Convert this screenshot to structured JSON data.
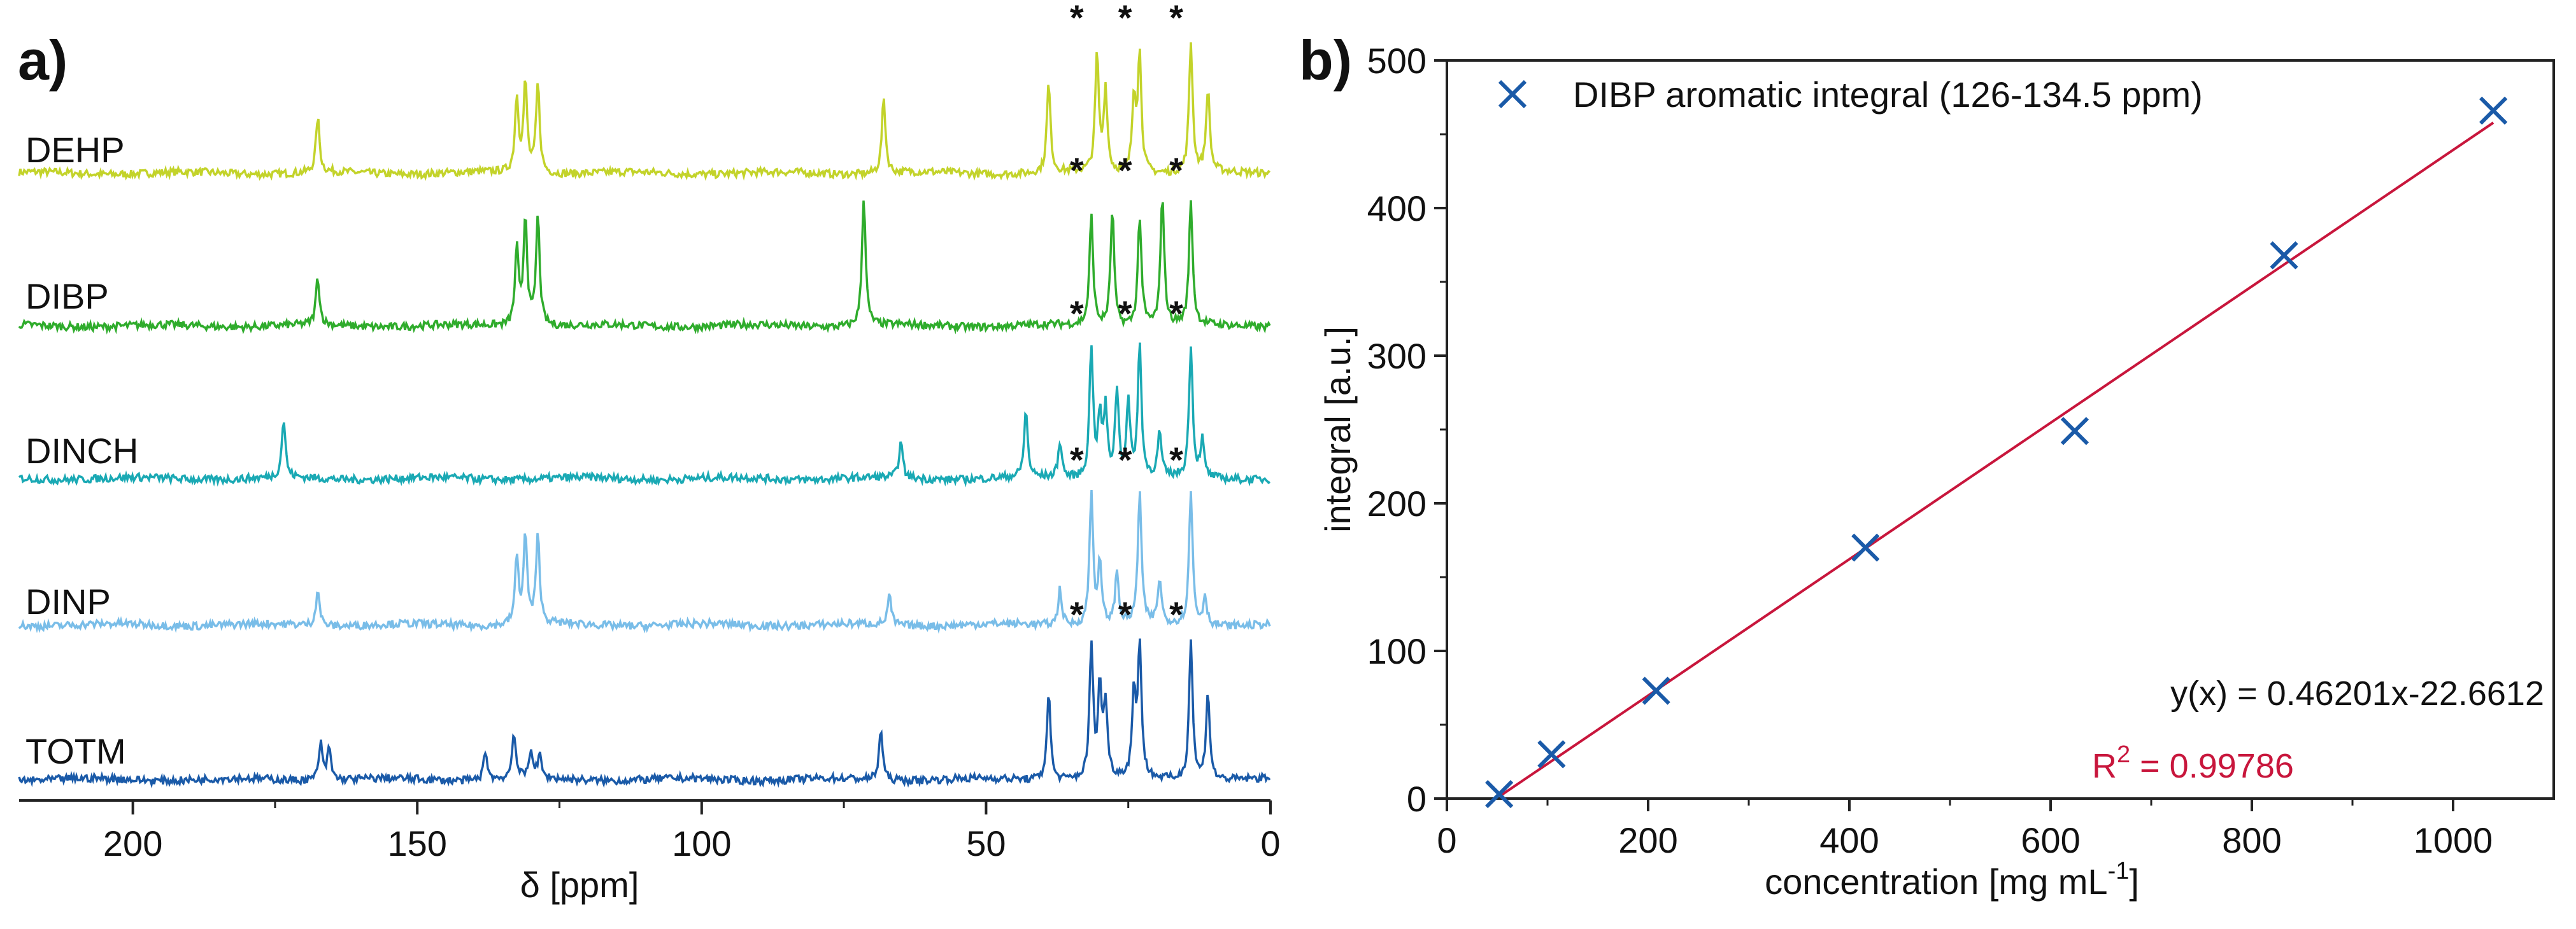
{
  "figure_title": "",
  "chart_data": [
    {
      "type": "line",
      "panel_label": "a)",
      "title": "",
      "xlabel": "δ [ppm]",
      "ylabel": "",
      "xlim": [
        220,
        0
      ],
      "x_reversed": true,
      "xticks": [
        200,
        150,
        100,
        50,
        0
      ],
      "grid": false,
      "peak_marker": "*",
      "marker_ppm": [
        31.5,
        23.0,
        14.0
      ],
      "series": [
        {
          "name": "DEHP",
          "color": "#c3d32a",
          "peaks": [
            [
              167.5,
              0.4
            ],
            [
              132.5,
              0.55
            ],
            [
              131.0,
              0.65
            ],
            [
              128.8,
              0.65
            ],
            [
              68.0,
              0.55
            ],
            [
              39.0,
              0.65
            ],
            [
              30.5,
              0.85
            ],
            [
              29.0,
              0.6
            ],
            [
              24.0,
              0.55
            ],
            [
              23.0,
              0.85
            ],
            [
              14.0,
              0.95
            ],
            [
              11.0,
              0.6
            ]
          ]
        },
        {
          "name": "DIBP",
          "color": "#2fac2c",
          "peaks": [
            [
              167.5,
              0.35
            ],
            [
              132.5,
              0.55
            ],
            [
              131.0,
              0.8
            ],
            [
              128.8,
              0.8
            ],
            [
              71.5,
              0.95
            ],
            [
              31.5,
              0.8
            ],
            [
              27.8,
              0.85
            ],
            [
              23.0,
              0.8
            ],
            [
              19.0,
              0.95
            ],
            [
              14.0,
              0.9
            ]
          ]
        },
        {
          "name": "DINCH",
          "color": "#1aa9b4",
          "peaks": [
            [
              173.5,
              0.4
            ],
            [
              65.0,
              0.25
            ],
            [
              43.0,
              0.45
            ],
            [
              37.0,
              0.25
            ],
            [
              31.5,
              0.9
            ],
            [
              30.0,
              0.4
            ],
            [
              29.0,
              0.45
            ],
            [
              27.0,
              0.6
            ],
            [
              25.0,
              0.5
            ],
            [
              23.0,
              0.9
            ],
            [
              19.5,
              0.3
            ],
            [
              14.0,
              0.9
            ],
            [
              12.0,
              0.25
            ]
          ]
        },
        {
          "name": "DINP",
          "color": "#79bde8",
          "peaks": [
            [
              167.5,
              0.25
            ],
            [
              132.5,
              0.45
            ],
            [
              131.0,
              0.6
            ],
            [
              128.8,
              0.6
            ],
            [
              67.0,
              0.2
            ],
            [
              37.0,
              0.25
            ],
            [
              31.5,
              0.9
            ],
            [
              30.0,
              0.4
            ],
            [
              27.0,
              0.35
            ],
            [
              23.0,
              0.9
            ],
            [
              19.5,
              0.3
            ],
            [
              14.0,
              0.9
            ],
            [
              11.5,
              0.2
            ]
          ]
        },
        {
          "name": "TOTM",
          "color": "#1a5aa8",
          "peaks": [
            [
              167.0,
              0.25
            ],
            [
              165.5,
              0.22
            ],
            [
              138.0,
              0.2
            ],
            [
              133.0,
              0.32
            ],
            [
              130.0,
              0.2
            ],
            [
              128.5,
              0.15
            ],
            [
              68.5,
              0.35
            ],
            [
              39.0,
              0.6
            ],
            [
              31.5,
              0.9
            ],
            [
              30.0,
              0.6
            ],
            [
              29.0,
              0.5
            ],
            [
              24.0,
              0.55
            ],
            [
              23.0,
              0.9
            ],
            [
              14.0,
              0.95
            ],
            [
              11.0,
              0.6
            ]
          ]
        }
      ]
    },
    {
      "type": "scatter",
      "panel_label": "b)",
      "title": "",
      "xlabel": "concentration [mg mL",
      "xlabel_superscript": "-1",
      "xlabel_suffix": "]",
      "ylabel": "integral [a.u.]",
      "xlim": [
        0,
        1100
      ],
      "ylim": [
        0,
        500
      ],
      "xticks": [
        0,
        200,
        400,
        600,
        800,
        1000
      ],
      "yticks": [
        0,
        100,
        200,
        300,
        400,
        500
      ],
      "grid": false,
      "legend_position": "top-left",
      "series": [
        {
          "name": "DIBP aromatic integral (126-134.5 ppm)",
          "color": "#1a5aa8",
          "x": [
            52,
            104,
            208,
            416,
            624,
            832,
            1040
          ],
          "y": [
            3,
            30,
            73,
            170,
            249,
            368,
            466
          ]
        }
      ],
      "fit": {
        "color": "#c8163c",
        "slope": 0.46201,
        "intercept": -22.6612,
        "x_range": [
          52,
          1040
        ],
        "equation": "y(x) = 0.46201x-22.6612",
        "r2_label": "R",
        "r2_superscript": "2",
        "r2_value": " = 0.99786"
      }
    }
  ]
}
